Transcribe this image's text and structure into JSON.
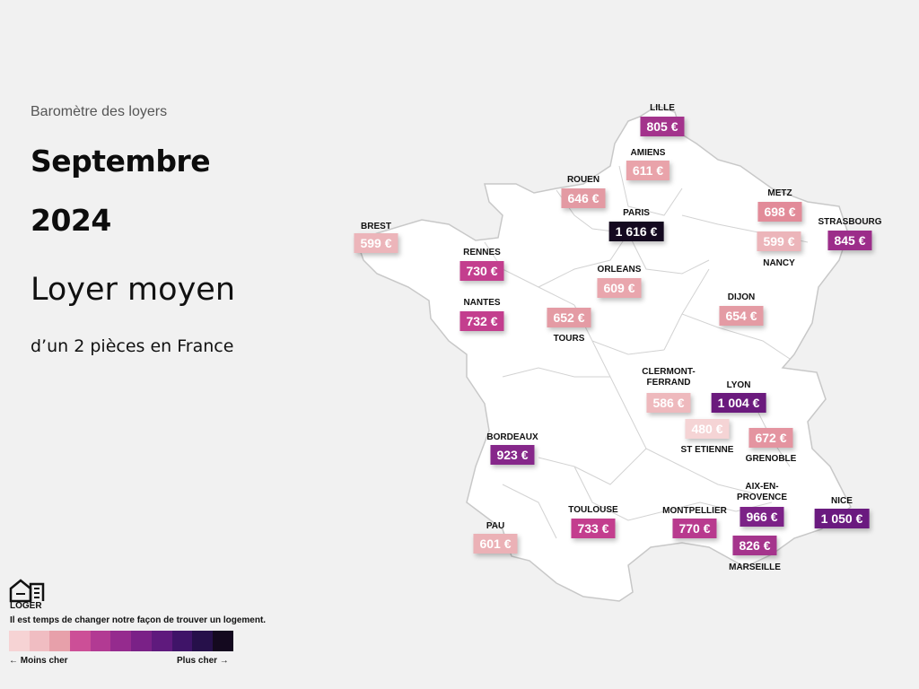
{
  "header": {
    "subtitle": "Baromètre des loyers",
    "month": "Septembre",
    "year": "2024",
    "heading": "Loyer moyen",
    "description": "d’un 2 pièces en France"
  },
  "cities": [
    {
      "name": "LILLE",
      "price": "805 €",
      "color": "#a3338c"
    },
    {
      "name": "AMIENS",
      "price": "611 €",
      "color": "#e9a3aa"
    },
    {
      "name": "ROUEN",
      "price": "646 €",
      "color": "#e39aa3"
    },
    {
      "name": "METZ",
      "price": "698 €",
      "color": "#e28b99"
    },
    {
      "name": "STRASBOURG",
      "price": "845 €",
      "color": "#9c2d8a"
    },
    {
      "name": "NANCY",
      "price": "599 €",
      "color": "#ecb5ba"
    },
    {
      "name": "BREST",
      "price": "599 €",
      "color": "#ecb5ba"
    },
    {
      "name": "PARIS",
      "price": "1 616 €",
      "color": "#14091f"
    },
    {
      "name": "RENNES",
      "price": "730 €",
      "color": "#c33e8e"
    },
    {
      "name": "ORLEANS",
      "price": "609 €",
      "color": "#e9a6ad"
    },
    {
      "name": "NANTES",
      "price": "732 €",
      "color": "#c33e8e"
    },
    {
      "name": "TOURS",
      "price": "652 €",
      "color": "#e49ba4"
    },
    {
      "name": "DIJON",
      "price": "654 €",
      "color": "#e49ba4"
    },
    {
      "name": "CLERMONT-FERRAND",
      "price": "586 €",
      "color": "#eeb9bd"
    },
    {
      "name": "LYON",
      "price": "1 004 €",
      "color": "#6b1a7d"
    },
    {
      "name": "ST ETIENNE",
      "price": "480 €",
      "color": "#f5d4d5"
    },
    {
      "name": "GRENOBLE",
      "price": "672 €",
      "color": "#e494a0"
    },
    {
      "name": "BORDEAUX",
      "price": "923 €",
      "color": "#86278a"
    },
    {
      "name": "AIX-EN-PROVENCE",
      "price": "966 €",
      "color": "#7c2287"
    },
    {
      "name": "NICE",
      "price": "1 050 €",
      "color": "#6a1a7f"
    },
    {
      "name": "PAU",
      "price": "601 €",
      "color": "#ebb1b6"
    },
    {
      "name": "TOULOUSE",
      "price": "733 €",
      "color": "#c33e8e"
    },
    {
      "name": "MONTPELLIER",
      "price": "770 €",
      "color": "#b83a8e"
    },
    {
      "name": "MARSEILLE",
      "price": "826 €",
      "color": "#a5348c"
    }
  ],
  "legend": {
    "brand": "LOGER",
    "tagline": "Il est temps de changer notre façon de trouver un logement.",
    "less": "← Moins cher",
    "more": "Plus cher →",
    "colors": [
      "#f6d3d4",
      "#f0bdc2",
      "#e7a0aa",
      "#cc4f97",
      "#b23a93",
      "#952b8e",
      "#7a2187",
      "#5f1a7d",
      "#3f1468",
      "#26104a",
      "#14091f"
    ]
  }
}
